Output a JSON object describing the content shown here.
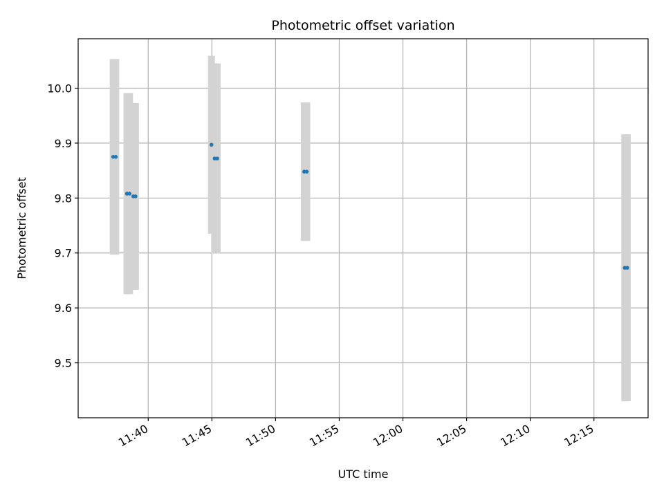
{
  "chart_data": {
    "type": "scatter",
    "title": "Photometric offset variation",
    "xlabel": "UTC time",
    "ylabel": "Photometric offset",
    "x_axis_type": "time",
    "xlim": [
      "11:34:30",
      "12:19:15"
    ],
    "ylim": [
      9.4,
      10.09
    ],
    "x_ticks": [
      "11:40",
      "11:45",
      "11:50",
      "11:55",
      "12:00",
      "12:05",
      "12:10",
      "12:15"
    ],
    "y_ticks": [
      9.5,
      9.6,
      9.7,
      9.8,
      9.9,
      10.0
    ],
    "y_tick_labels": [
      "9.5",
      "9.6",
      "9.7",
      "9.8",
      "9.9",
      "10.0"
    ],
    "grid": true,
    "series": [
      {
        "marker_color": "#1f77b4",
        "error_color": "#d3d3d3",
        "points": [
          {
            "x": "11:37:15",
            "y": 9.875,
            "yerr": 0.178
          },
          {
            "x": "11:37:27",
            "y": 9.875,
            "yerr": 0.178
          },
          {
            "x": "11:38:20",
            "y": 9.808,
            "yerr": 0.183
          },
          {
            "x": "11:38:32",
            "y": 9.808,
            "yerr": 0.183
          },
          {
            "x": "11:38:50",
            "y": 9.803,
            "yerr": 0.17
          },
          {
            "x": "11:39:00",
            "y": 9.803,
            "yerr": 0.17
          },
          {
            "x": "11:44:58",
            "y": 9.897,
            "yerr": 0.162
          },
          {
            "x": "11:45:13",
            "y": 9.872,
            "yerr": 0.173
          },
          {
            "x": "11:45:25",
            "y": 9.872,
            "yerr": 0.173
          },
          {
            "x": "11:52:15",
            "y": 9.848,
            "yerr": 0.126
          },
          {
            "x": "11:52:27",
            "y": 9.848,
            "yerr": 0.126
          },
          {
            "x": "12:17:25",
            "y": 9.673,
            "yerr": 0.243
          },
          {
            "x": "12:17:37",
            "y": 9.673,
            "yerr": 0.243
          }
        ]
      }
    ]
  }
}
